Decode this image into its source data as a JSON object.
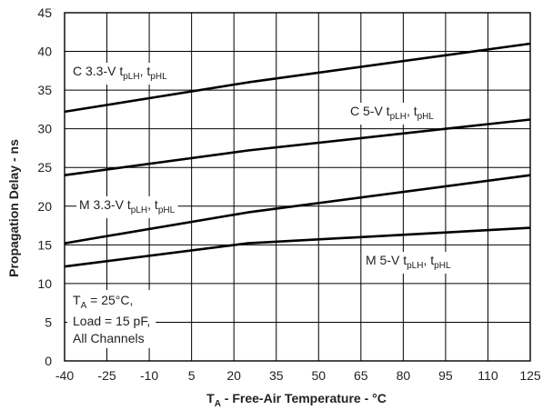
{
  "chart_data": {
    "type": "line",
    "xlabel": {
      "main": "T",
      "sub": "A",
      "rest": " - Free-Air Temperature - °C"
    },
    "ylabel": "Propagation Delay - ns",
    "xlim": [
      -40,
      125
    ],
    "ylim": [
      0,
      45
    ],
    "x_ticks": [
      -40,
      -25,
      -10,
      5,
      20,
      35,
      50,
      65,
      80,
      95,
      110,
      125
    ],
    "y_ticks": [
      0,
      5,
      10,
      15,
      20,
      25,
      30,
      35,
      40,
      45
    ],
    "grid": true,
    "line_color": "#000000",
    "series": [
      {
        "id": "c33",
        "label_parts": [
          [
            "C 3.3-V t",
            ""
          ],
          [
            "pLH",
            "sub"
          ],
          [
            ", t",
            ""
          ],
          [
            "pHL",
            "sub"
          ]
        ],
        "points": [
          [
            -40,
            32.2
          ],
          [
            25,
            36
          ],
          [
            125,
            41
          ]
        ]
      },
      {
        "id": "c5",
        "label_parts": [
          [
            "C 5-V t",
            ""
          ],
          [
            "pLH",
            "sub"
          ],
          [
            ", t",
            ""
          ],
          [
            "pHL",
            "sub"
          ]
        ],
        "points": [
          [
            -40,
            24
          ],
          [
            25,
            27.2
          ],
          [
            125,
            31.2
          ]
        ]
      },
      {
        "id": "m33",
        "label_parts": [
          [
            "M 3.3-V t",
            ""
          ],
          [
            "pLH",
            "sub"
          ],
          [
            ", t",
            ""
          ],
          [
            "pHL",
            "sub"
          ]
        ],
        "points": [
          [
            -40,
            15.2
          ],
          [
            25,
            19.2
          ],
          [
            125,
            24
          ]
        ]
      },
      {
        "id": "m5",
        "label_parts": [
          [
            "M 5-V t",
            ""
          ],
          [
            "pLH",
            "sub"
          ],
          [
            ", t",
            ""
          ],
          [
            "pHL",
            "sub"
          ]
        ],
        "points": [
          [
            -40,
            12.2
          ],
          [
            25,
            15.2
          ],
          [
            125,
            17.2
          ]
        ]
      }
    ],
    "conditions": {
      "line1": {
        "main": "T",
        "sub": "A",
        "rest": " = 25°C,"
      },
      "line2": "Load = 15 pF,",
      "line3": "All Channels"
    }
  }
}
